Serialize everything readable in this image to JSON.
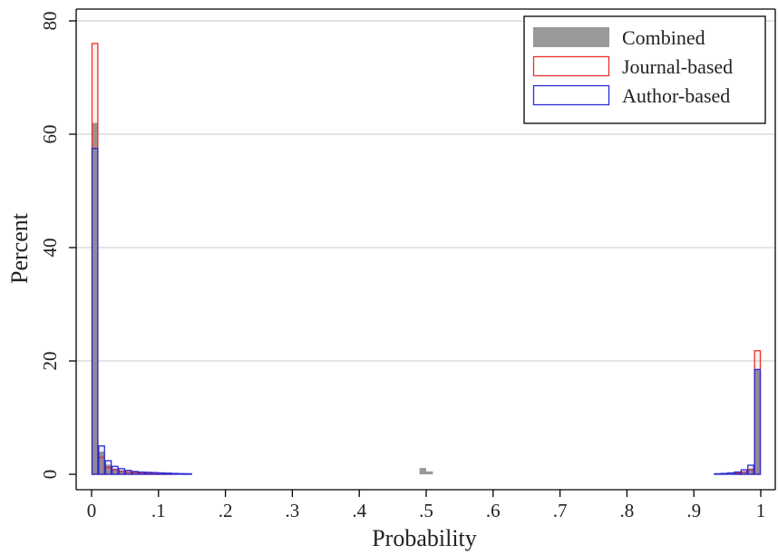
{
  "chart_data": {
    "type": "bar",
    "subtype": "overlaid-histogram",
    "xlabel": "Probability",
    "ylabel": "Percent",
    "xlim": [
      0,
      1
    ],
    "ylim": [
      0,
      80
    ],
    "bin_width": 0.01,
    "xticks": [
      {
        "value": 0,
        "label": "0"
      },
      {
        "value": 0.1,
        "label": ".1"
      },
      {
        "value": 0.2,
        "label": ".2"
      },
      {
        "value": 0.3,
        "label": ".3"
      },
      {
        "value": 0.4,
        "label": ".4"
      },
      {
        "value": 0.5,
        "label": ".5"
      },
      {
        "value": 0.6,
        "label": ".6"
      },
      {
        "value": 0.7,
        "label": ".7"
      },
      {
        "value": 0.8,
        "label": ".8"
      },
      {
        "value": 0.9,
        "label": ".9"
      },
      {
        "value": 1,
        "label": "1"
      }
    ],
    "yticks": [
      {
        "value": 0,
        "label": "0"
      },
      {
        "value": 20,
        "label": "20"
      },
      {
        "value": 40,
        "label": "40"
      },
      {
        "value": 60,
        "label": "60"
      },
      {
        "value": 80,
        "label": "80"
      }
    ],
    "grid": "horizontal",
    "legend_position": "top-right",
    "series": [
      {
        "name": "Combined",
        "style": "filled",
        "color": "#999999",
        "bins": [
          {
            "x": 0.0,
            "y": 62
          },
          {
            "x": 0.01,
            "y": 4.0
          },
          {
            "x": 0.02,
            "y": 1.7
          },
          {
            "x": 0.03,
            "y": 1.0
          },
          {
            "x": 0.04,
            "y": 0.7
          },
          {
            "x": 0.05,
            "y": 0.5
          },
          {
            "x": 0.06,
            "y": 0.4
          },
          {
            "x": 0.07,
            "y": 0.3
          },
          {
            "x": 0.08,
            "y": 0.25
          },
          {
            "x": 0.09,
            "y": 0.2
          },
          {
            "x": 0.1,
            "y": 0.2
          },
          {
            "x": 0.11,
            "y": 0.15
          },
          {
            "x": 0.12,
            "y": 0.12
          },
          {
            "x": 0.13,
            "y": 0.1
          },
          {
            "x": 0.14,
            "y": 0.1
          },
          {
            "x": 0.49,
            "y": 1.1
          },
          {
            "x": 0.5,
            "y": 0.5
          },
          {
            "x": 0.95,
            "y": 0.15
          },
          {
            "x": 0.96,
            "y": 0.3
          },
          {
            "x": 0.97,
            "y": 0.5
          },
          {
            "x": 0.98,
            "y": 1.0
          },
          {
            "x": 0.99,
            "y": 18.5
          }
        ]
      },
      {
        "name": "Journal-based",
        "style": "outline",
        "color": "#e8302a",
        "bins": [
          {
            "x": 0.0,
            "y": 76
          },
          {
            "x": 0.01,
            "y": 3.0
          },
          {
            "x": 0.02,
            "y": 1.2
          },
          {
            "x": 0.03,
            "y": 0.8
          },
          {
            "x": 0.04,
            "y": 0.5
          },
          {
            "x": 0.05,
            "y": 0.4
          },
          {
            "x": 0.06,
            "y": 0.3
          },
          {
            "x": 0.07,
            "y": 0.25
          },
          {
            "x": 0.08,
            "y": 0.2
          },
          {
            "x": 0.09,
            "y": 0.15
          },
          {
            "x": 0.1,
            "y": 0.15
          },
          {
            "x": 0.11,
            "y": 0.1
          },
          {
            "x": 0.96,
            "y": 0.2
          },
          {
            "x": 0.97,
            "y": 0.4
          },
          {
            "x": 0.98,
            "y": 0.8
          },
          {
            "x": 0.99,
            "y": 21.8
          }
        ]
      },
      {
        "name": "Author-based",
        "style": "outline",
        "color": "#2b2bd6",
        "bins": [
          {
            "x": 0.0,
            "y": 57.5
          },
          {
            "x": 0.01,
            "y": 5.0
          },
          {
            "x": 0.02,
            "y": 2.4
          },
          {
            "x": 0.03,
            "y": 1.4
          },
          {
            "x": 0.04,
            "y": 1.0
          },
          {
            "x": 0.05,
            "y": 0.7
          },
          {
            "x": 0.06,
            "y": 0.5
          },
          {
            "x": 0.07,
            "y": 0.4
          },
          {
            "x": 0.08,
            "y": 0.35
          },
          {
            "x": 0.09,
            "y": 0.3
          },
          {
            "x": 0.1,
            "y": 0.25
          },
          {
            "x": 0.11,
            "y": 0.2
          },
          {
            "x": 0.12,
            "y": 0.15
          },
          {
            "x": 0.13,
            "y": 0.12
          },
          {
            "x": 0.14,
            "y": 0.1
          },
          {
            "x": 0.93,
            "y": 0.1
          },
          {
            "x": 0.94,
            "y": 0.15
          },
          {
            "x": 0.95,
            "y": 0.25
          },
          {
            "x": 0.96,
            "y": 0.4
          },
          {
            "x": 0.97,
            "y": 0.8
          },
          {
            "x": 0.98,
            "y": 1.6
          },
          {
            "x": 0.99,
            "y": 18.5
          }
        ]
      }
    ]
  }
}
